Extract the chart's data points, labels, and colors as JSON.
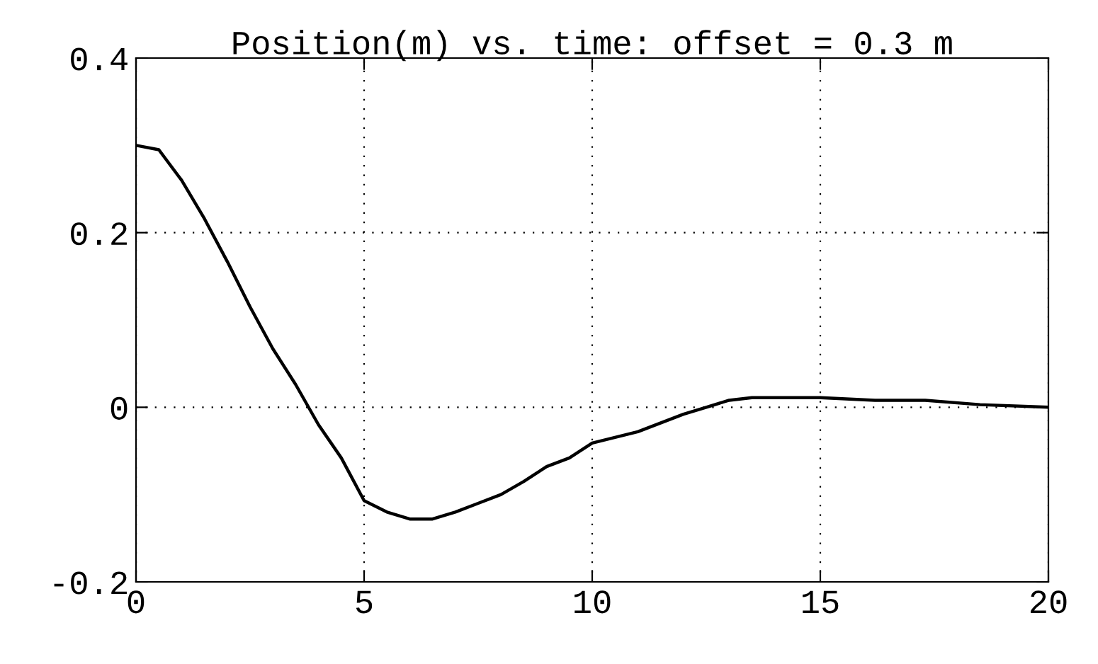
{
  "chart_data": {
    "type": "line",
    "title": "Position(m) vs. time: offset = 0.3 m",
    "x": [
      0,
      0.5,
      1,
      1.5,
      2,
      2.5,
      3,
      3.5,
      4,
      4.5,
      5,
      5.5,
      6,
      6.5,
      7,
      7.5,
      8,
      8.5,
      9,
      9.5,
      10,
      11,
      12,
      12.5,
      13,
      13.5,
      15,
      16.2,
      17.3,
      18.5,
      20
    ],
    "series": [
      {
        "color": "#000000",
        "values": [
          0.3,
          0.295,
          0.26,
          0.216,
          0.167,
          0.115,
          0.067,
          0.026,
          -0.02,
          -0.058,
          -0.107,
          -0.12,
          -0.128,
          -0.128,
          -0.12,
          -0.11,
          -0.1,
          -0.085,
          -0.068,
          -0.058,
          -0.041,
          -0.028,
          -0.008,
          0,
          0.008,
          0.011,
          0.011,
          0.008,
          0.008,
          0.003,
          0
        ]
      }
    ],
    "xlim": [
      0,
      20
    ],
    "xticks": [
      0,
      5,
      10,
      15,
      20
    ],
    "ylim": [
      -0.2,
      0.4
    ],
    "yticks": [
      -0.2,
      0.2,
      0.4,
      {
        "value": 0,
        "label": "0"
      }
    ],
    "grid": true,
    "line_style": "solid",
    "marker": "none"
  }
}
